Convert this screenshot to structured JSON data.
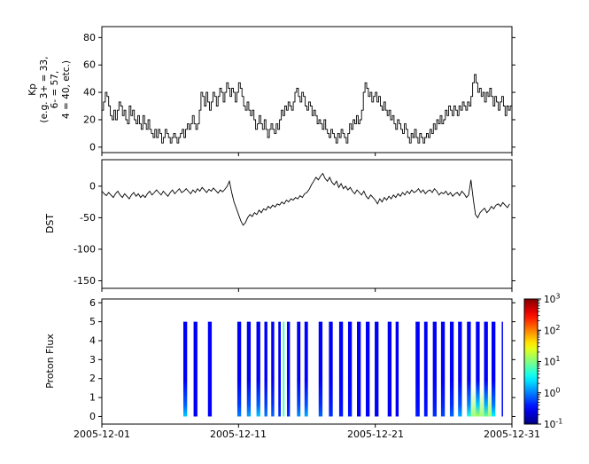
{
  "figure": {
    "bg": "#ffffff",
    "xtick_labels": [
      "2005-12-01",
      "2005-12-11",
      "2005-12-21",
      "2005-12-31"
    ],
    "x_axis": {
      "start": "2005-12-01",
      "end": "2005-12-31",
      "span_days": 30
    }
  },
  "chart_data": [
    {
      "panel": "kp",
      "type": "line",
      "style": "step",
      "color": "#000000",
      "ylabel": "Kp (e.g. 3+ = 33, 6- = 57, 4 = 40, etc.)",
      "ylabel_lines": [
        "Kp",
        "(e.g. 3+ = 33,",
        "6- = 57,",
        "4 = 40, etc.)"
      ],
      "ylim": [
        -4,
        88
      ],
      "yticks": [
        0,
        20,
        40,
        60,
        80
      ],
      "x_days": 30,
      "values_per_day": 8,
      "values": [
        27,
        33,
        40,
        37,
        30,
        23,
        20,
        27,
        20,
        27,
        33,
        30,
        23,
        27,
        20,
        17,
        30,
        23,
        27,
        20,
        17,
        23,
        17,
        13,
        23,
        17,
        13,
        20,
        13,
        10,
        7,
        13,
        7,
        13,
        10,
        3,
        7,
        13,
        10,
        7,
        3,
        7,
        10,
        7,
        3,
        7,
        10,
        13,
        7,
        13,
        17,
        13,
        17,
        23,
        17,
        13,
        17,
        27,
        40,
        37,
        30,
        40,
        33,
        27,
        33,
        40,
        37,
        30,
        37,
        43,
        40,
        33,
        40,
        47,
        43,
        37,
        43,
        40,
        33,
        40,
        47,
        43,
        37,
        30,
        27,
        33,
        27,
        23,
        27,
        20,
        13,
        17,
        23,
        17,
        13,
        20,
        13,
        7,
        13,
        17,
        13,
        10,
        17,
        13,
        20,
        27,
        23,
        30,
        27,
        33,
        30,
        27,
        33,
        40,
        43,
        37,
        33,
        40,
        37,
        30,
        27,
        33,
        30,
        23,
        27,
        23,
        17,
        20,
        17,
        13,
        20,
        13,
        10,
        7,
        13,
        10,
        7,
        3,
        10,
        7,
        13,
        10,
        7,
        3,
        10,
        17,
        13,
        20,
        17,
        23,
        17,
        20,
        27,
        40,
        47,
        43,
        37,
        40,
        33,
        37,
        40,
        33,
        37,
        30,
        27,
        33,
        27,
        23,
        27,
        20,
        23,
        17,
        13,
        20,
        17,
        13,
        10,
        17,
        13,
        7,
        3,
        10,
        7,
        13,
        7,
        3,
        10,
        7,
        3,
        7,
        10,
        7,
        13,
        10,
        17,
        13,
        20,
        17,
        23,
        17,
        20,
        27,
        23,
        30,
        27,
        23,
        30,
        27,
        23,
        30,
        27,
        33,
        30,
        27,
        33,
        30,
        37,
        47,
        53,
        47,
        40,
        43,
        37,
        40,
        33,
        40,
        37,
        43,
        37,
        30,
        37,
        33,
        27,
        33,
        37,
        30,
        23,
        30,
        27,
        30
      ]
    },
    {
      "panel": "dst",
      "type": "line",
      "color": "#000000",
      "ylabel": "DST",
      "ylim": [
        -162,
        42
      ],
      "yticks": [
        0,
        -50,
        -100,
        -150
      ],
      "x_days": 30,
      "values_per_day": 6,
      "values": [
        -8,
        -12,
        -15,
        -10,
        -14,
        -18,
        -12,
        -8,
        -14,
        -18,
        -12,
        -16,
        -20,
        -14,
        -10,
        -16,
        -12,
        -18,
        -14,
        -18,
        -12,
        -8,
        -14,
        -10,
        -6,
        -10,
        -14,
        -8,
        -12,
        -16,
        -10,
        -6,
        -12,
        -8,
        -4,
        -10,
        -8,
        -4,
        -8,
        -12,
        -6,
        -10,
        -4,
        -8,
        -2,
        -6,
        -10,
        -5,
        -8,
        -3,
        -7,
        -11,
        -6,
        -9,
        -5,
        0,
        8,
        -10,
        -25,
        -35,
        -45,
        -55,
        -62,
        -58,
        -50,
        -45,
        -48,
        -42,
        -45,
        -38,
        -42,
        -36,
        -38,
        -32,
        -35,
        -30,
        -33,
        -28,
        -30,
        -25,
        -28,
        -22,
        -25,
        -20,
        -22,
        -18,
        -20,
        -15,
        -18,
        -12,
        -10,
        -5,
        2,
        8,
        14,
        10,
        16,
        20,
        12,
        8,
        14,
        6,
        2,
        8,
        -2,
        4,
        -4,
        0,
        -6,
        -2,
        -8,
        -12,
        -6,
        -10,
        -14,
        -8,
        -16,
        -20,
        -14,
        -18,
        -22,
        -28,
        -20,
        -25,
        -18,
        -22,
        -16,
        -20,
        -14,
        -18,
        -12,
        -16,
        -10,
        -14,
        -8,
        -12,
        -6,
        -10,
        -8,
        -4,
        -10,
        -6,
        -12,
        -8,
        -6,
        -10,
        -4,
        -8,
        -14,
        -10,
        -12,
        -8,
        -14,
        -10,
        -16,
        -12,
        -10,
        -15,
        -8,
        -12,
        -18,
        -14,
        10,
        -20,
        -45,
        -50,
        -42,
        -38,
        -35,
        -42,
        -38,
        -32,
        -36,
        -30,
        -28,
        -32,
        -26,
        -30,
        -34,
        -28
      ]
    },
    {
      "panel": "proton_flux",
      "type": "heatmap",
      "ylabel": "Proton Flux",
      "ylim": [
        -0.4,
        6.2
      ],
      "yticks": [
        0,
        1,
        2,
        3,
        4,
        5,
        6
      ],
      "x_days": 30,
      "stripe_y_range": [
        0,
        5
      ],
      "colormap": "jet",
      "flux_log_range": [
        -1,
        3
      ],
      "stripes": [
        {
          "day": 6.1,
          "w": 0.28,
          "top": 0.3,
          "bot": 2.0
        },
        {
          "day": 6.85,
          "w": 0.28,
          "top": 0.3,
          "bot": 0.3
        },
        {
          "day": 7.9,
          "w": 0.28,
          "top": 0.3,
          "bot": 0.3
        },
        {
          "day": 10.05,
          "w": 0.28,
          "top": 0.3,
          "bot": 1.0
        },
        {
          "day": 10.75,
          "w": 0.28,
          "top": 0.3,
          "bot": 1.5
        },
        {
          "day": 11.45,
          "w": 0.28,
          "top": 0.3,
          "bot": 2.0
        },
        {
          "day": 12.0,
          "w": 0.22,
          "top": 0.3,
          "bot": 1.0
        },
        {
          "day": 12.5,
          "w": 0.22,
          "top": 0.3,
          "bot": 0.8
        },
        {
          "day": 13.0,
          "w": 0.18,
          "top": 0.3,
          "bot": 0.5
        },
        {
          "day": 13.3,
          "w": 0.12,
          "top": 6.0,
          "bot": 6.0
        },
        {
          "day": 13.65,
          "w": 0.22,
          "top": 0.3,
          "bot": 0.5
        },
        {
          "day": 14.4,
          "w": 0.25,
          "top": 0.3,
          "bot": 1.2
        },
        {
          "day": 14.95,
          "w": 0.25,
          "top": 0.3,
          "bot": 1.5
        },
        {
          "day": 16.0,
          "w": 0.28,
          "top": 0.3,
          "bot": 0.8
        },
        {
          "day": 16.75,
          "w": 0.28,
          "top": 0.3,
          "bot": 0.5
        },
        {
          "day": 17.5,
          "w": 0.28,
          "top": 0.3,
          "bot": 0.4
        },
        {
          "day": 18.15,
          "w": 0.28,
          "top": 0.3,
          "bot": 0.4
        },
        {
          "day": 18.8,
          "w": 0.28,
          "top": 0.3,
          "bot": 0.3
        },
        {
          "day": 19.45,
          "w": 0.28,
          "top": 0.3,
          "bot": 0.3
        },
        {
          "day": 20.1,
          "w": 0.28,
          "top": 0.3,
          "bot": 0.3
        },
        {
          "day": 21.05,
          "w": 0.28,
          "top": 0.3,
          "bot": 0.3
        },
        {
          "day": 21.6,
          "w": 0.22,
          "top": 0.3,
          "bot": 0.3
        },
        {
          "day": 23.1,
          "w": 0.3,
          "top": 0.3,
          "bot": 0.4
        },
        {
          "day": 23.7,
          "w": 0.25,
          "top": 0.3,
          "bot": 0.4
        },
        {
          "day": 24.35,
          "w": 0.28,
          "top": 0.3,
          "bot": 0.5
        },
        {
          "day": 24.95,
          "w": 0.28,
          "top": 0.3,
          "bot": 0.6
        },
        {
          "day": 25.6,
          "w": 0.28,
          "top": 0.3,
          "bot": 0.8
        },
        {
          "day": 26.2,
          "w": 0.28,
          "top": 0.3,
          "bot": 1.5
        },
        {
          "day": 26.85,
          "w": 0.28,
          "top": 0.3,
          "bot": 4.0
        },
        {
          "day": 27.5,
          "w": 0.28,
          "top": 0.3,
          "bot": 15.0
        },
        {
          "day": 28.1,
          "w": 0.28,
          "top": 0.3,
          "bot": 8.0
        },
        {
          "day": 28.65,
          "w": 0.28,
          "top": 0.3,
          "bot": 3.0
        },
        {
          "day": 29.3,
          "w": 0.08,
          "top": 0.3,
          "bot": 0.3
        }
      ],
      "bottom_blob": {
        "day": 27.7,
        "w": 1.6,
        "h": 1.5,
        "flux": 12
      },
      "colorbar": {
        "scale": "log",
        "tick_exponents": [
          3,
          2,
          1,
          0,
          -1
        ],
        "label_base": "10"
      }
    }
  ]
}
